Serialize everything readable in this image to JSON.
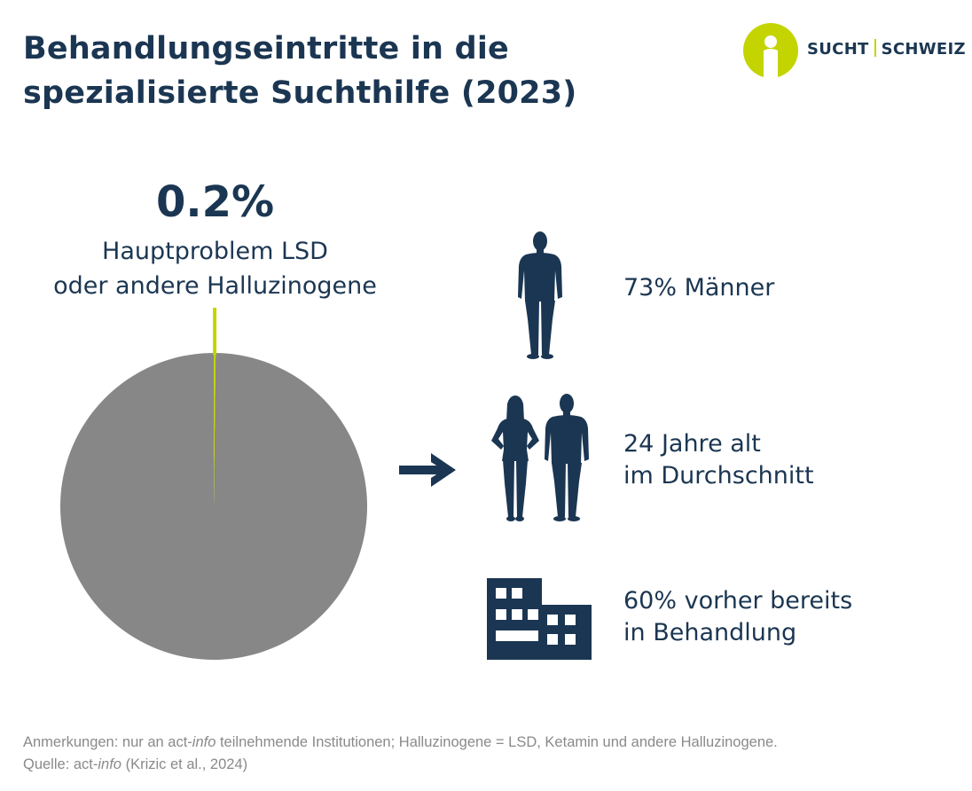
{
  "title": {
    "line1": "Behandlungseintritte in die",
    "line2": "spezialisierte Suchthilfe (2023)"
  },
  "logo": {
    "left": "SUCHT",
    "right": "SCHWEIZ"
  },
  "chart_data": {
    "type": "pie",
    "slices": [
      {
        "value": 0.2,
        "color": "#c3d400"
      },
      {
        "value": 99.8,
        "color": "#878787"
      }
    ],
    "highlight": {
      "value_label": "0.2%",
      "label_line1": "Hauptproblem LSD",
      "label_line2": "oder andere Halluzinogene"
    }
  },
  "facts": [
    {
      "icon": "man-silhouette-icon",
      "line1": "73% Männer",
      "line2": ""
    },
    {
      "icon": "woman-and-man-silhouette-icon",
      "line1": "24 Jahre alt",
      "line2": "im Durchschnitt"
    },
    {
      "icon": "building-icon",
      "line1": "60% vorher bereits",
      "line2": "in Behandlung"
    }
  ],
  "notes": {
    "remarks_prefix": "Anmerkungen: nur an act-",
    "remarks_italic": "info",
    "remarks_suffix": " teilnehmende Institutionen; Halluzinogene = LSD, Ketamin und andere Halluzinogene.",
    "source_prefix": "Quelle: act-",
    "source_italic": "info",
    "source_suffix": " (Krizic et al., 2024)"
  },
  "colors": {
    "navy": "#1b3652",
    "lime": "#c3d400",
    "grey": "#878787",
    "note_grey": "#8a8a8a"
  }
}
